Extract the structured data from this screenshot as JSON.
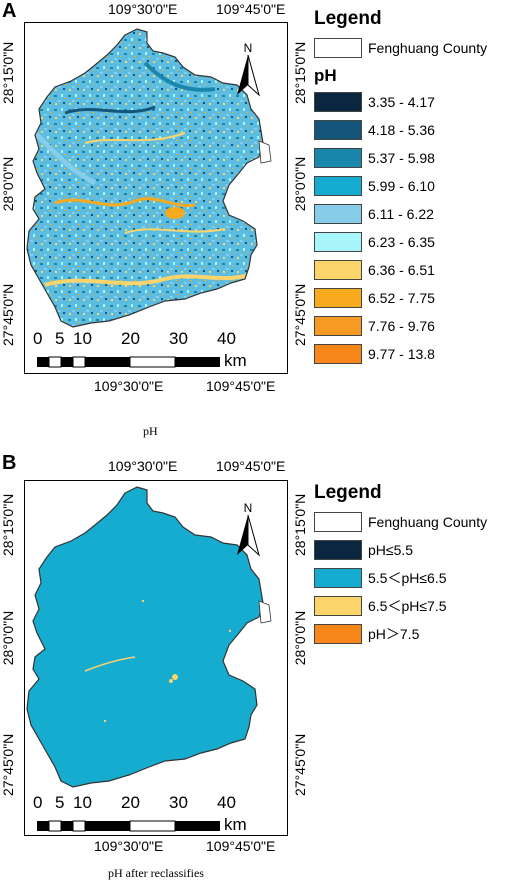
{
  "panel_a": {
    "letter": "A",
    "caption": "pH",
    "top_lons": [
      "109°30'0\"E",
      "109°45'0\"E"
    ],
    "bottom_lons": [
      "109°30'0\"E",
      "109°45'0\"E"
    ],
    "left_lats": [
      "28°15'0\"N",
      "28°0'0\"N",
      "27°45'0\"N"
    ],
    "right_lats": [
      "28°15'0\"N",
      "28°0'0\"N",
      "27°45'0\"N"
    ],
    "north_label": "N",
    "scale_ticks": [
      "0",
      "5",
      "10",
      "20",
      "30",
      "40"
    ],
    "scale_unit": "km",
    "legend": {
      "title": "Legend",
      "boundary_label": "Fenghuang County",
      "subtitle": "pH",
      "classes": [
        {
          "label": "3.35 - 4.17",
          "color": "#0b2740"
        },
        {
          "label": "4.18 - 5.36",
          "color": "#15557a"
        },
        {
          "label": "5.37 - 5.98",
          "color": "#1a86ac"
        },
        {
          "label": "5.99 - 6.10",
          "color": "#16acd0"
        },
        {
          "label": "6.11 - 6.22",
          "color": "#87cde9"
        },
        {
          "label": "6.23 - 6.35",
          "color": "#a8f5fb"
        },
        {
          "label": "6.36 - 6.51",
          "color": "#fbd46b"
        },
        {
          "label": "6.52 - 7.75",
          "color": "#f8aa1e"
        },
        {
          "label": "7.76 - 9.76",
          "color": "#f79a24"
        },
        {
          "label": "9.77 - 13.8",
          "color": "#f7871a"
        }
      ]
    }
  },
  "panel_b": {
    "letter": "B",
    "caption": "pH after reclassifies",
    "top_lons": [
      "109°30'0\"E",
      "109°45'0\"E"
    ],
    "bottom_lons": [
      "109°30'0\"E",
      "109°45'0\"E"
    ],
    "left_lats": [
      "28°15'0\"N",
      "28°0'0\"N",
      "27°45'0\"N"
    ],
    "right_lats": [
      "28°15'0\"N",
      "28°0'0\"N",
      "27°45'0\"N"
    ],
    "north_label": "N",
    "scale_ticks": [
      "0",
      "5",
      "10",
      "20",
      "30",
      "40"
    ],
    "scale_unit": "km",
    "legend": {
      "title": "Legend",
      "boundary_label": "Fenghuang County",
      "classes": [
        {
          "label": "pH≤5.5",
          "color": "#0b2740"
        },
        {
          "label": "5.5＜pH≤6.5",
          "color": "#16acd0"
        },
        {
          "label": "6.5＜pH≤7.5",
          "color": "#fbd46b"
        },
        {
          "label": "pH＞7.5",
          "color": "#f7871a"
        }
      ]
    }
  }
}
